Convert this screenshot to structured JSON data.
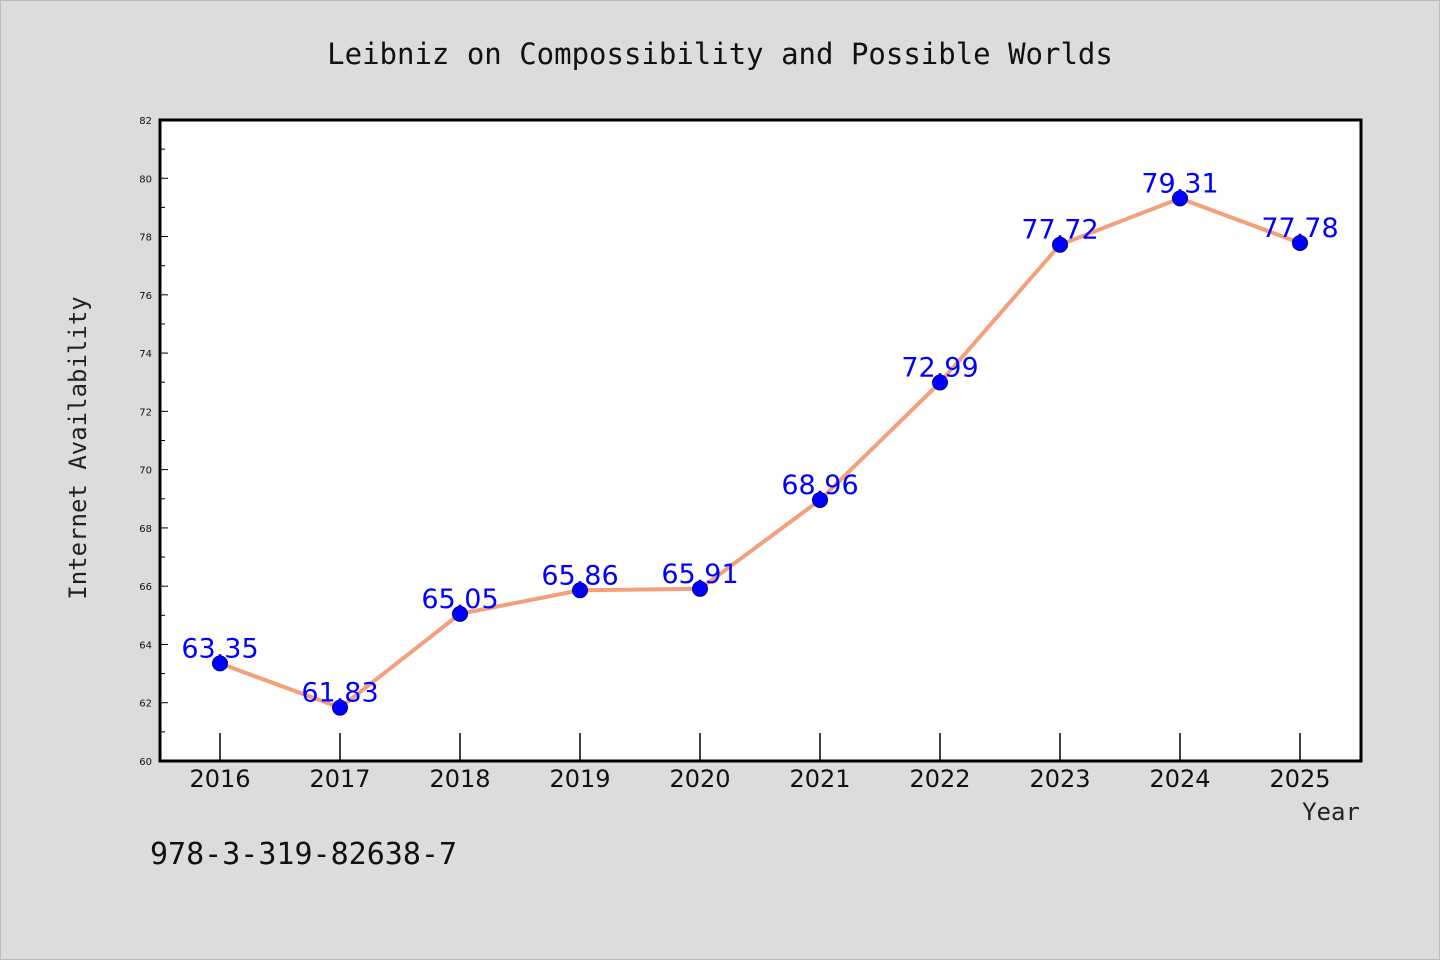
{
  "chart_data": {
    "type": "line",
    "title": "Leibniz on Compossibility and Possible Worlds",
    "xlabel": "Year",
    "ylabel": "Internet Availability",
    "categories": [
      "2016",
      "2017",
      "2018",
      "2019",
      "2020",
      "2021",
      "2022",
      "2023",
      "2024",
      "2025"
    ],
    "values": [
      63.35,
      61.83,
      65.05,
      65.86,
      65.91,
      68.96,
      72.99,
      77.72,
      79.31,
      77.78
    ],
    "data_labels": [
      "63.35",
      "61.83",
      "65.05",
      "65.86",
      "65.91",
      "68.96",
      "72.99",
      "77.72",
      "79.31",
      "77.78"
    ],
    "ylim": [
      60,
      82
    ],
    "yticks": [
      60,
      62,
      64,
      66,
      68,
      70,
      72,
      74,
      76,
      78,
      80,
      82
    ],
    "grid": false,
    "legend": "none",
    "colors": {
      "line": "#f4a07c",
      "marker": "#0000ff",
      "label": "#0000ff",
      "background": "#dcdcdc",
      "plot_background": "#ffffff"
    }
  },
  "footer": {
    "isbn": "978-3-319-82638-7"
  }
}
